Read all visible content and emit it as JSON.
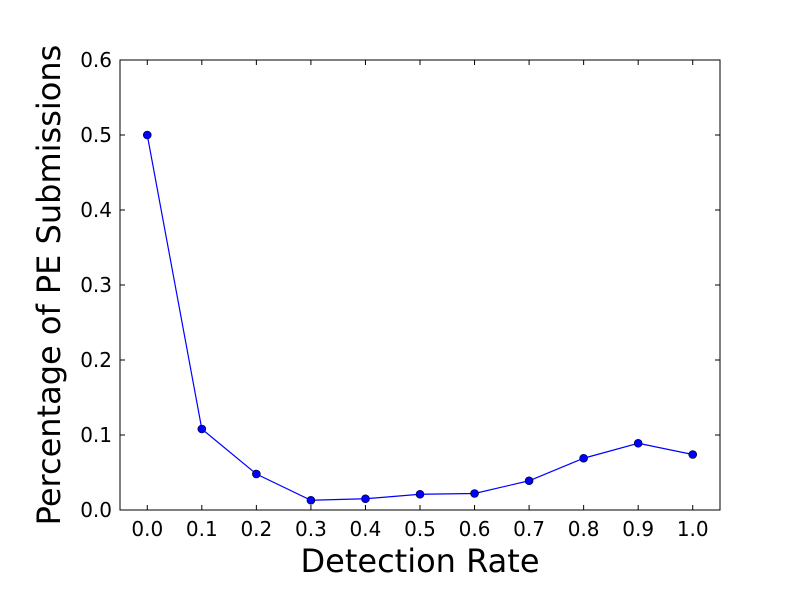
{
  "chart_data": {
    "type": "line",
    "title": "",
    "xlabel": "Detection Rate",
    "ylabel": "Percentage of PE Submissions",
    "x": [
      0.0,
      0.1,
      0.2,
      0.3,
      0.4,
      0.5,
      0.6,
      0.7,
      0.8,
      0.9,
      1.0
    ],
    "series": [
      {
        "values": [
          0.5,
          0.108,
          0.048,
          0.013,
          0.015,
          0.021,
          0.022,
          0.039,
          0.069,
          0.089,
          0.074
        ],
        "color": "#0000ff",
        "marker": "circle"
      }
    ],
    "xlim": [
      -0.05,
      1.05
    ],
    "ylim": [
      0.0,
      0.6
    ],
    "xticks": [
      "0.0",
      "0.1",
      "0.2",
      "0.3",
      "0.4",
      "0.5",
      "0.6",
      "0.7",
      "0.8",
      "0.9",
      "1.0"
    ],
    "yticks": [
      "0.0",
      "0.1",
      "0.2",
      "0.3",
      "0.4",
      "0.5",
      "0.6"
    ],
    "grid": false,
    "legend": "none"
  }
}
